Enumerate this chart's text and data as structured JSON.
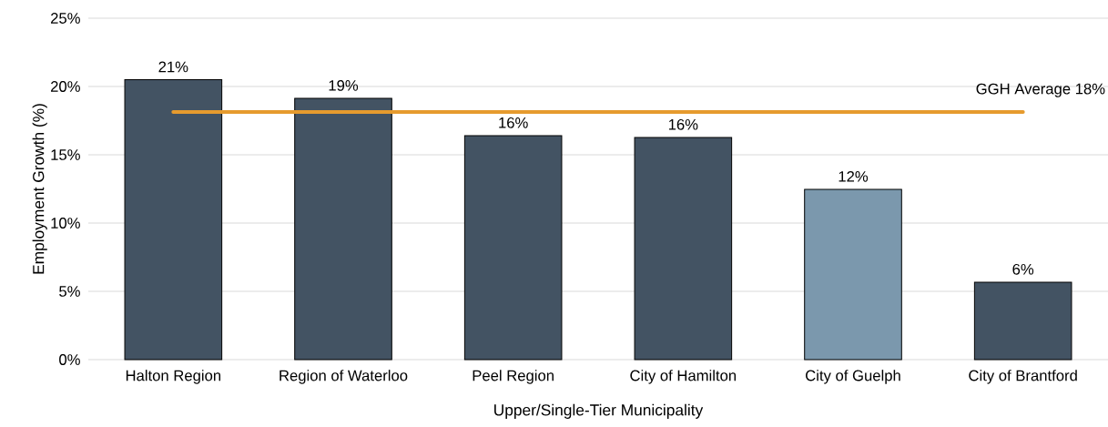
{
  "chart_data": {
    "type": "bar",
    "categories": [
      "Halton Region",
      "Region of Waterloo",
      "Peel Region",
      "City of Hamilton",
      "City of Guelph",
      "City of Brantford"
    ],
    "values": [
      20.5,
      19.13,
      16.4,
      16.27,
      12.47,
      5.67
    ],
    "value_labels": [
      "21%",
      "19%",
      "16%",
      "16%",
      "12%",
      "6%"
    ],
    "colors": [
      "#435363",
      "#435363",
      "#435363",
      "#435363",
      "#7b98ad",
      "#435363"
    ],
    "xlabel": "Upper/Single-Tier Municipality",
    "ylabel": "Employment Growth (%)",
    "ylim": [
      0,
      25
    ],
    "yticks": [
      {
        "value": 0,
        "label": "0%"
      },
      {
        "value": 5,
        "label": "5%"
      },
      {
        "value": 10,
        "label": "10%"
      },
      {
        "value": 15,
        "label": "15%"
      },
      {
        "value": 20,
        "label": "20%"
      },
      {
        "value": 25,
        "label": "25%"
      }
    ],
    "grid": "y",
    "ref_lines": [
      {
        "axis": "y",
        "value": 18.13,
        "label": "GGH Average 18%",
        "color": "#e69b2e"
      }
    ]
  }
}
